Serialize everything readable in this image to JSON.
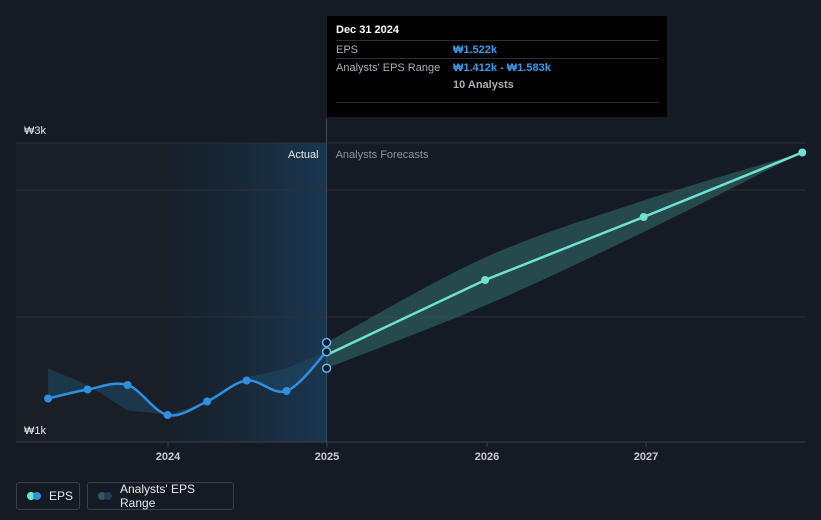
{
  "colors": {
    "background": "#151b24",
    "actual_line": "#2f8fe0",
    "forecast_line": "#6fe3cf",
    "range_band": "#2c5a5c",
    "grid": "#2a313b"
  },
  "tooltip": {
    "date": "Dec 31 2024",
    "eps_label": "EPS",
    "eps_value": "₩1.522k",
    "range_label": "Analysts' EPS Range",
    "range_value": "₩1.412k - ₩1.583k",
    "analysts": "10 Analysts"
  },
  "regions": {
    "actual": "Actual",
    "forecast": "Analysts Forecasts"
  },
  "legend": {
    "eps": "EPS",
    "range": "Analysts' EPS Range"
  },
  "chart_data": {
    "type": "line",
    "y_tick_labels": [
      "₩3k",
      "₩1k"
    ],
    "ylim": [
      1000,
      3000
    ],
    "xlim": [
      "2023-04",
      "2027-12"
    ],
    "x_ticks": [
      "2024",
      "2025",
      "2026",
      "2027"
    ],
    "series": [
      {
        "name": "EPS",
        "points": [
          {
            "x": "2023-03-31",
            "y": 1210
          },
          {
            "x": "2023-06-30",
            "y": 1270
          },
          {
            "x": "2023-09-30",
            "y": 1300
          },
          {
            "x": "2023-12-31",
            "y": 1100
          },
          {
            "x": "2024-03-31",
            "y": 1190
          },
          {
            "x": "2024-06-30",
            "y": 1330
          },
          {
            "x": "2024-09-30",
            "y": 1260
          },
          {
            "x": "2024-12-31",
            "y": 1522
          }
        ]
      },
      {
        "name": "Analysts' EPS Range",
        "points": [
          {
            "x": "2024-12-31",
            "y": 1500,
            "low": 1412,
            "high": 1583
          },
          {
            "x": "2025-12-31",
            "y": 2000,
            "low": 1830,
            "high": 2150
          },
          {
            "x": "2026-12-31",
            "y": 2420,
            "low": 2320,
            "high": 2530
          },
          {
            "x": "2027-12-31",
            "y": 2850,
            "low": 2850,
            "high": 2850
          }
        ]
      }
    ],
    "actual_lower_band": [
      1410,
      1300,
      1130,
      1105,
      1180,
      1350,
      1412
    ],
    "grid": true,
    "legend_position": "bottom-left"
  }
}
